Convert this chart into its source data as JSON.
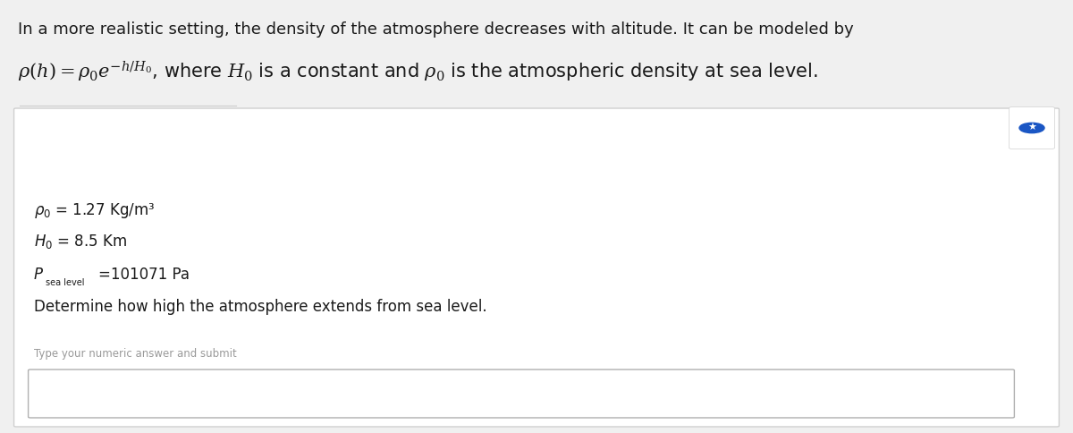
{
  "bg_color": "#f0f0f0",
  "white_color": "#ffffff",
  "text_color": "#1a1a1a",
  "gray_text": "#999999",
  "border_color": "#cccccc",
  "title_line1": "In a more realistic setting, the density of the atmosphere decreases with altitude. It can be modeled by",
  "param4": "Determine how high the atmosphere extends from sea level.",
  "input_label": "Type your numeric answer and submit",
  "star_color": "#1a56c4",
  "star_box_color": "#ffffff",
  "figw": 12.0,
  "figh": 4.84,
  "dpi": 100
}
